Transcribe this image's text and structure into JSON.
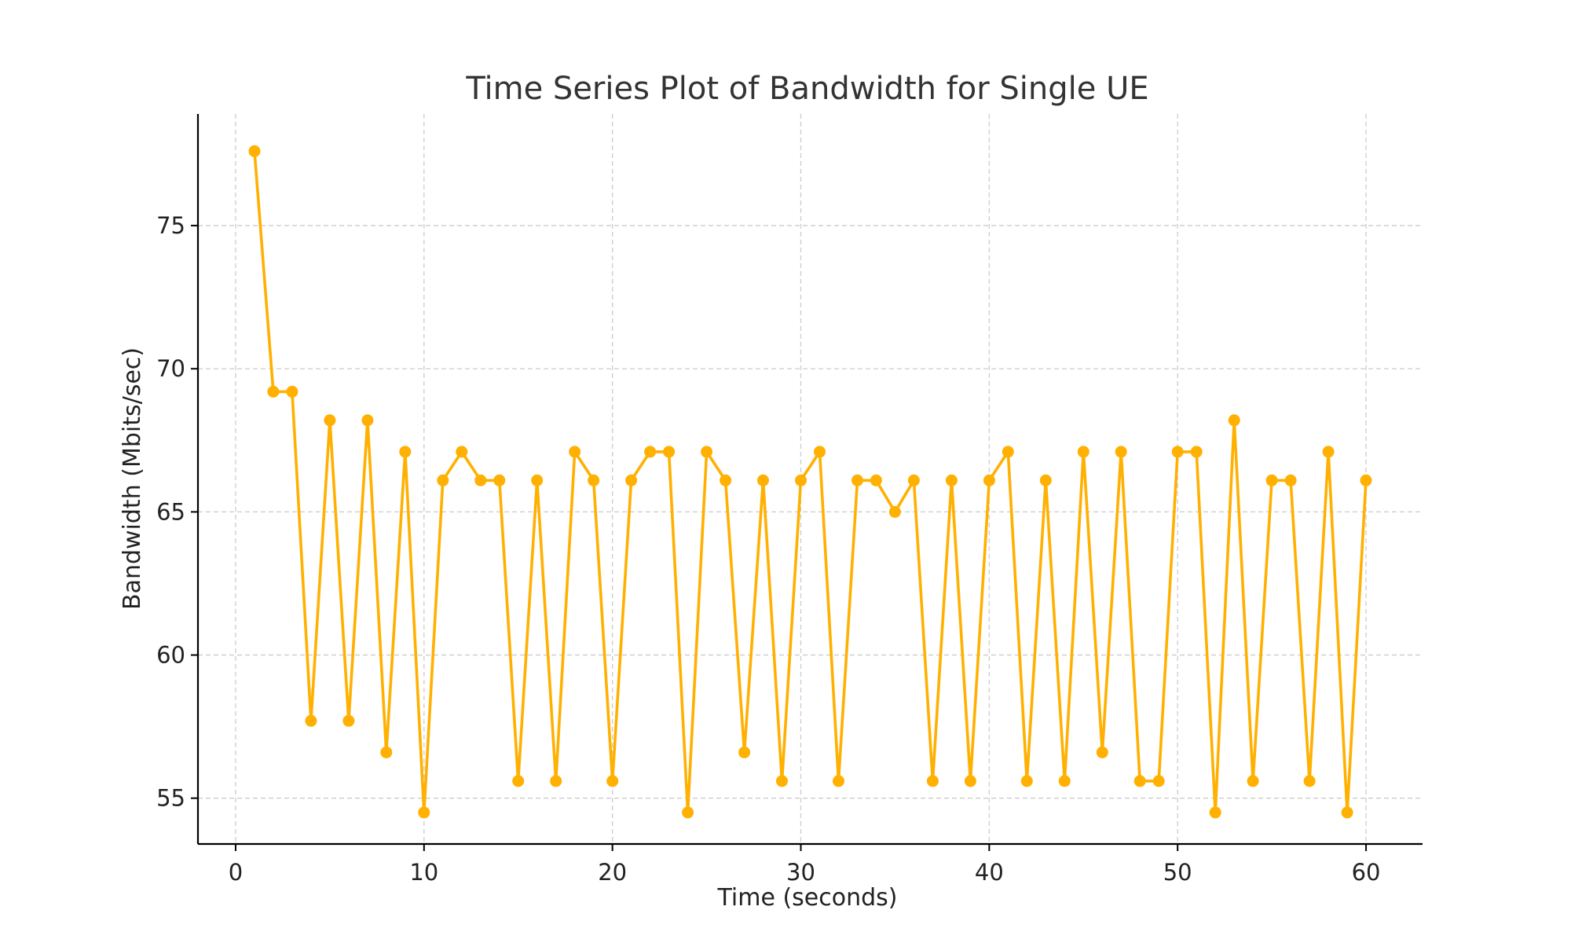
{
  "chart_data": {
    "type": "line",
    "title": "Time Series Plot of Bandwidth for Single UE",
    "xlabel": "Time (seconds)",
    "ylabel": "Bandwidth (Mbits/sec)",
    "xlim": [
      -2,
      63
    ],
    "ylim": [
      53.4,
      78.9
    ],
    "xticks": [
      0,
      10,
      20,
      30,
      40,
      50,
      60
    ],
    "yticks": [
      55,
      60,
      65,
      70,
      75
    ],
    "grid": true,
    "series": [
      {
        "color": "#FFB000",
        "marker": "circle",
        "x": [
          1,
          2,
          3,
          4,
          5,
          6,
          7,
          8,
          9,
          10,
          11,
          12,
          13,
          14,
          15,
          16,
          17,
          18,
          19,
          20,
          21,
          22,
          23,
          24,
          25,
          26,
          27,
          28,
          29,
          30,
          31,
          32,
          33,
          34,
          35,
          36,
          37,
          38,
          39,
          40,
          41,
          42,
          43,
          44,
          45,
          46,
          47,
          48,
          49,
          50,
          51,
          52,
          53,
          54,
          55,
          56,
          57,
          58,
          59,
          60
        ],
        "y": [
          77.6,
          69.2,
          69.2,
          57.7,
          68.2,
          57.7,
          68.2,
          56.6,
          67.1,
          54.5,
          66.1,
          67.1,
          66.1,
          66.1,
          55.6,
          66.1,
          55.6,
          67.1,
          66.1,
          55.6,
          66.1,
          67.1,
          67.1,
          54.5,
          67.1,
          66.1,
          56.6,
          66.1,
          55.6,
          66.1,
          67.1,
          55.6,
          66.1,
          66.1,
          65.0,
          66.1,
          55.6,
          66.1,
          55.6,
          66.1,
          67.1,
          55.6,
          66.1,
          55.6,
          67.1,
          56.6,
          67.1,
          55.6,
          55.6,
          67.1,
          67.1,
          54.5,
          68.2,
          55.6,
          66.1,
          66.1,
          55.6,
          67.1,
          54.5,
          66.1
        ]
      }
    ]
  }
}
